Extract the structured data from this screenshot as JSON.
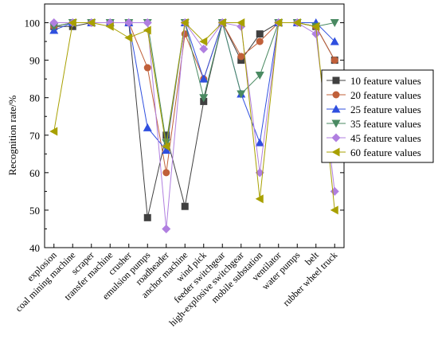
{
  "chart_data": {
    "type": "line",
    "title": "",
    "xlabel": "",
    "ylabel": "Recognition rate/%",
    "ylim": [
      40,
      105
    ],
    "yticks": [
      40,
      50,
      60,
      70,
      80,
      90,
      100
    ],
    "grid": false,
    "legend_position": "right",
    "categories": [
      "explosion",
      "coal mining machine",
      "scraper",
      "transfer machine",
      "crusher",
      "emulsion pumps",
      "roadheader",
      "anchor machine",
      "wind pick",
      "feeder switchgear",
      "high-explosive switchgear",
      "mobile substation",
      "ventilator",
      "water pumps",
      "belt",
      "rubber wheel truck"
    ],
    "series": [
      {
        "name": "10 feature values",
        "color": "#404040",
        "marker": "square",
        "values": [
          99,
          99,
          100,
          100,
          100,
          48,
          70,
          51,
          79,
          100,
          90,
          97,
          100,
          100,
          99,
          90
        ]
      },
      {
        "name": "20 feature values",
        "color": "#c0603a",
        "marker": "circle",
        "values": [
          99,
          100,
          100,
          100,
          100,
          88,
          60,
          97,
          85,
          100,
          91,
          95,
          100,
          100,
          99,
          90
        ]
      },
      {
        "name": "25 feature values",
        "color": "#2f4fdf",
        "marker": "triangle-up",
        "values": [
          98,
          100,
          100,
          100,
          100,
          72,
          66,
          100,
          85,
          100,
          81,
          68,
          100,
          100,
          100,
          95
        ]
      },
      {
        "name": "35 feature values",
        "color": "#4a8a62",
        "marker": "triangle-down",
        "values": [
          99,
          100,
          100,
          100,
          100,
          100,
          68,
          100,
          80,
          100,
          81,
          86,
          100,
          100,
          99,
          100
        ]
      },
      {
        "name": "45 feature values",
        "color": "#b07fe0",
        "marker": "diamond",
        "values": [
          100,
          100,
          100,
          100,
          100,
          100,
          45,
          100,
          93,
          100,
          99,
          60,
          100,
          100,
          97,
          55
        ]
      },
      {
        "name": "60 feature values",
        "color": "#a8a000",
        "marker": "triangle-left",
        "values": [
          71,
          100,
          100,
          99,
          96,
          98,
          67,
          100,
          95,
          100,
          100,
          53,
          100,
          100,
          99,
          50
        ]
      }
    ]
  }
}
